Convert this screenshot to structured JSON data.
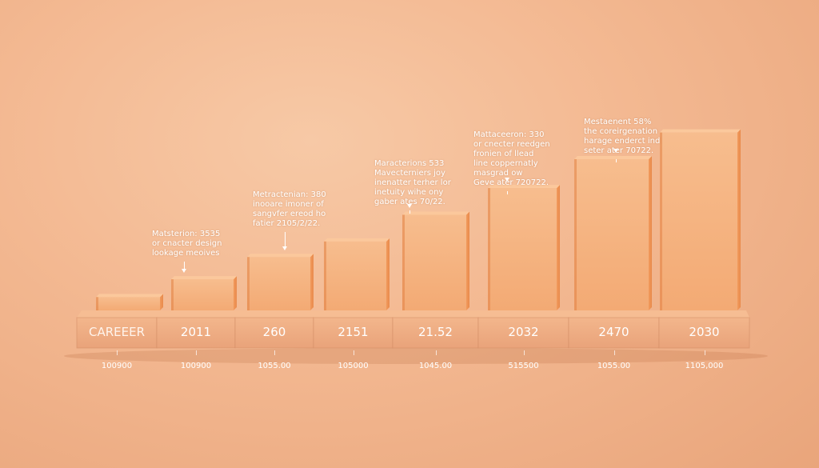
{
  "chart_data": {
    "type": "bar",
    "categories": [
      "CAREEER",
      "2011",
      "260",
      "2151",
      "21.52",
      "2032",
      "2470",
      "2030"
    ],
    "footer_labels": [
      "100900",
      "100900",
      "1055.00",
      "105000",
      "1045.00",
      "515500",
      "1055.00",
      "1105,000"
    ],
    "values": [
      0.06,
      0.14,
      0.24,
      0.31,
      0.43,
      0.55,
      0.68,
      0.8
    ],
    "ylim": [
      0,
      1
    ],
    "grid": false,
    "legend": "none",
    "annotations": [
      {
        "bar": 1,
        "text": "Matsterion: 3535\nor cnacter design\nlookage meoives"
      },
      {
        "bar": 2,
        "text": "Metractenian: 380\ninooare imoner of\nsangvfer ereod ho\nfatier 2105/2/22."
      },
      {
        "bar": 4,
        "text": "Maracterions 533\nMavecterniers joy\ninenatter terher lor\ninetuity wihe ony\ngaber ates 70/22."
      },
      {
        "bar": 5,
        "text": "Mattaceeron: 330\nor cnecter reedgen\nfronien of llead\nline coppernatly\nmasgrad ow\nGeve ater 720722."
      },
      {
        "bar": 6,
        "text": "Mestaenent 58%\nthe coreirgenation\nharage enderct ind\nseter ater 70722."
      }
    ]
  },
  "colors": {
    "bar_front": "#f5b27e",
    "bar_side": "#e59255",
    "bar_top": "#fbc89c",
    "base_front": "#efae83",
    "base_top": "#f6bd93",
    "text": "#ffffff"
  }
}
